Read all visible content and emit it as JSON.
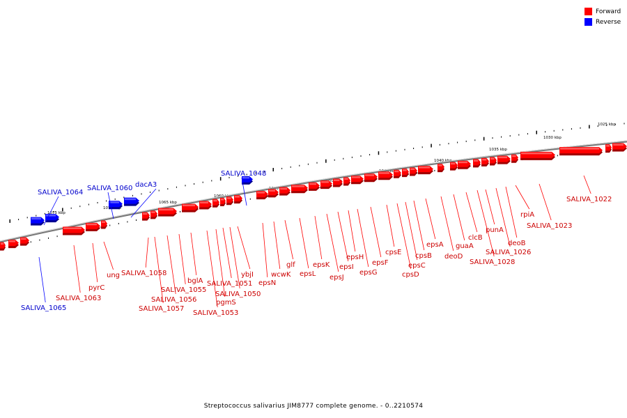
{
  "legend": [
    {
      "label": "Forward",
      "color": "#ff0000"
    },
    {
      "label": "Reverse",
      "color": "#0000ff"
    }
  ],
  "caption": "Streptococcus salivarius JIM8777 complete genome. - 0..2210574",
  "scale_labels": [
    "1025 kbp",
    "1030 kbp",
    "1035 kbp",
    "1040 kbp",
    "1045 kbp",
    "1050 kbp",
    "1055 kbp",
    "1060 kbp",
    "1065 kbp",
    "1070 kbp",
    "1075 kbp"
  ],
  "gene_labels": [
    {
      "text": "SALIVA_1022",
      "strand": "forward"
    },
    {
      "text": "SALIVA_1023",
      "strand": "forward"
    },
    {
      "text": "rpiA",
      "strand": "forward"
    },
    {
      "text": "deoB",
      "strand": "forward"
    },
    {
      "text": "SALIVA_1026",
      "strand": "forward"
    },
    {
      "text": "punA",
      "strand": "forward"
    },
    {
      "text": "SALIVA_1028",
      "strand": "forward"
    },
    {
      "text": "clcB",
      "strand": "forward"
    },
    {
      "text": "guaA",
      "strand": "forward"
    },
    {
      "text": "deoD",
      "strand": "forward"
    },
    {
      "text": "epsA",
      "strand": "forward"
    },
    {
      "text": "cpsB",
      "strand": "forward"
    },
    {
      "text": "epsC",
      "strand": "forward"
    },
    {
      "text": "cpsD",
      "strand": "forward"
    },
    {
      "text": "cpsE",
      "strand": "forward"
    },
    {
      "text": "epsF",
      "strand": "forward"
    },
    {
      "text": "epsG",
      "strand": "forward"
    },
    {
      "text": "epsH",
      "strand": "forward"
    },
    {
      "text": "epsI",
      "strand": "forward"
    },
    {
      "text": "epsJ",
      "strand": "forward"
    },
    {
      "text": "epsK",
      "strand": "forward"
    },
    {
      "text": "epsL",
      "strand": "forward"
    },
    {
      "text": "glf",
      "strand": "forward"
    },
    {
      "text": "wcwK",
      "strand": "forward"
    },
    {
      "text": "epsN",
      "strand": "forward"
    },
    {
      "text": "ybjI",
      "strand": "forward"
    },
    {
      "text": "SALIVA_1048",
      "strand": "reverse"
    },
    {
      "text": "SALIVA_1050",
      "strand": "forward"
    },
    {
      "text": "SALIVA_1051",
      "strand": "forward"
    },
    {
      "text": "pgmS",
      "strand": "forward"
    },
    {
      "text": "SALIVA_1053",
      "strand": "forward"
    },
    {
      "text": "bglA",
      "strand": "forward"
    },
    {
      "text": "SALIVA_1055",
      "strand": "forward"
    },
    {
      "text": "SALIVA_1056",
      "strand": "forward"
    },
    {
      "text": "SALIVA_1057",
      "strand": "forward"
    },
    {
      "text": "SALIVA_1058",
      "strand": "forward"
    },
    {
      "text": "dacA3",
      "strand": "reverse"
    },
    {
      "text": "SALIVA_1060",
      "strand": "reverse"
    },
    {
      "text": "ung",
      "strand": "forward"
    },
    {
      "text": "pyrC",
      "strand": "forward"
    },
    {
      "text": "SALIVA_1063",
      "strand": "forward"
    },
    {
      "text": "SALIVA_1064",
      "strand": "reverse"
    },
    {
      "text": "SALIVA_1065",
      "strand": "reverse"
    }
  ]
}
